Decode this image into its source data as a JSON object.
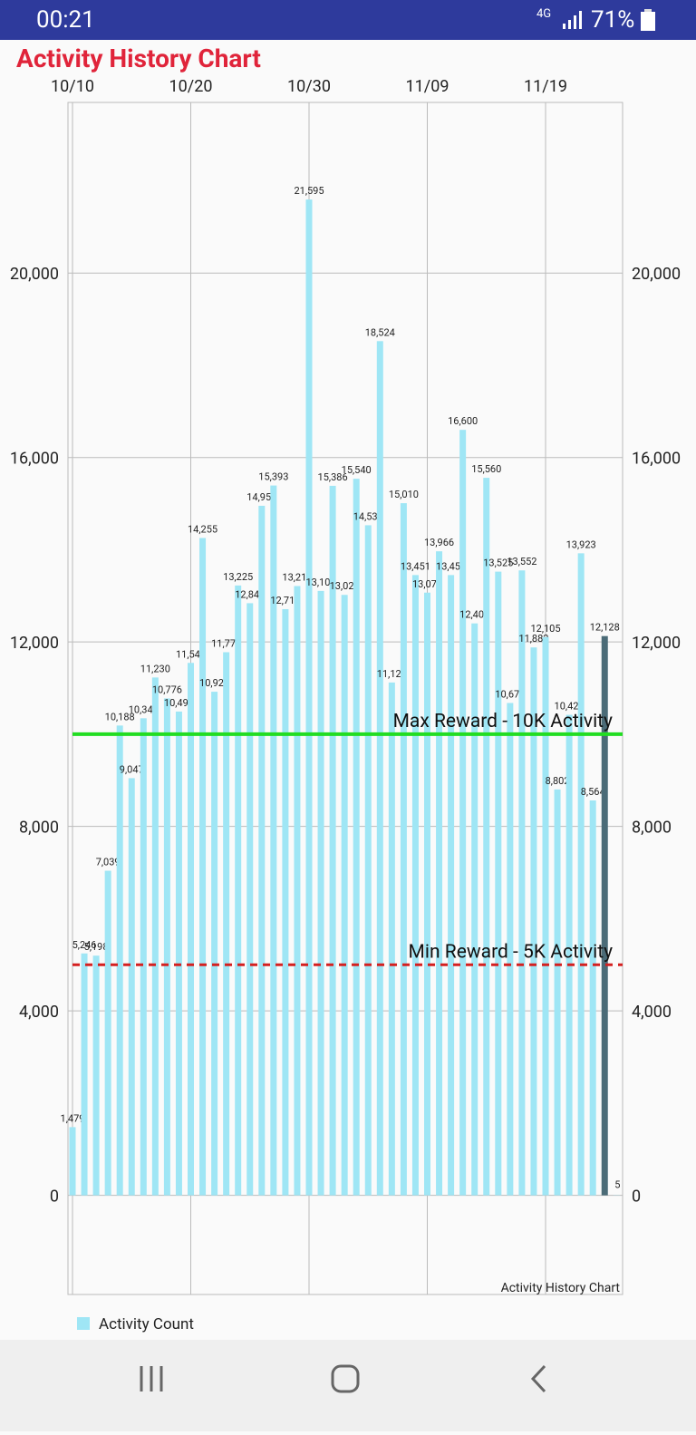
{
  "status_bar": {
    "time": "00:21",
    "network": "4G",
    "battery": "71%"
  },
  "app_title": "Activity History Chart",
  "chart_data": {
    "type": "bar",
    "description": "Activity History Chart",
    "categories": [
      "10/10",
      null,
      null,
      null,
      null,
      null,
      null,
      null,
      null,
      null,
      "10/20",
      null,
      null,
      null,
      null,
      null,
      null,
      null,
      null,
      null,
      "10/30",
      null,
      null,
      null,
      null,
      null,
      null,
      null,
      null,
      null,
      "11/09",
      null,
      null,
      null,
      null,
      null,
      null,
      null,
      null,
      null,
      "11/19",
      null,
      null,
      null,
      null,
      null,
      null
    ],
    "series": [
      {
        "name": "Activity Count",
        "color": "#9fe6f5",
        "values": [
          1479,
          5246,
          5198,
          7039,
          10188,
          9047,
          10346,
          11230,
          10776,
          10491,
          11546,
          14255,
          10921,
          11778,
          13225,
          12841,
          14953,
          15393,
          12712,
          13213,
          21595,
          13107,
          15386,
          13021,
          15540,
          14531,
          18524,
          11121,
          15010,
          13451,
          13070,
          13966,
          13451,
          16600,
          12403,
          15560,
          13525,
          10677,
          13552,
          11882,
          12105,
          8802,
          10420,
          13923,
          8564,
          12128,
          5
        ],
        "value_labels": [
          "1,479",
          "5,246",
          "5,198",
          "7,039",
          "10,188",
          "9,047",
          "10,346",
          "11,230",
          "10,776",
          "10,491",
          "11,546",
          "14,255",
          "10,921",
          "11,778",
          "13,225",
          "12,841",
          "14,953",
          "15,393",
          "12,712",
          "13,213",
          "21,595",
          "13,107",
          "15,386",
          "13,021",
          "15,540",
          "14,531",
          "18,524",
          "11,121",
          "15,010",
          "13,451",
          "13,070",
          "13,966",
          "13,451",
          "16,600",
          "12,403",
          "15,560",
          "13,525",
          "10,677",
          "13,552",
          "11,882",
          "12,105",
          "8,802",
          "10,420",
          "13,923",
          "8,564",
          "12,128",
          "5"
        ],
        "bar_colors": [
          "#9fe6f5",
          "#9fe6f5",
          "#9fe6f5",
          "#9fe6f5",
          "#9fe6f5",
          "#9fe6f5",
          "#9fe6f5",
          "#9fe6f5",
          "#9fe6f5",
          "#9fe6f5",
          "#9fe6f5",
          "#9fe6f5",
          "#9fe6f5",
          "#9fe6f5",
          "#9fe6f5",
          "#9fe6f5",
          "#9fe6f5",
          "#9fe6f5",
          "#9fe6f5",
          "#9fe6f5",
          "#9fe6f5",
          "#9fe6f5",
          "#9fe6f5",
          "#9fe6f5",
          "#9fe6f5",
          "#9fe6f5",
          "#9fe6f5",
          "#9fe6f5",
          "#9fe6f5",
          "#9fe6f5",
          "#9fe6f5",
          "#9fe6f5",
          "#9fe6f5",
          "#9fe6f5",
          "#9fe6f5",
          "#9fe6f5",
          "#9fe6f5",
          "#9fe6f5",
          "#9fe6f5",
          "#9fe6f5",
          "#9fe6f5",
          "#9fe6f5",
          "#9fe6f5",
          "#9fe6f5",
          "#9fe6f5",
          "#4b6b77",
          "#9fe6f5"
        ]
      }
    ],
    "ylim": [
      -2150,
      23700
    ],
    "yticks": [
      0,
      {
        "value": 4000,
        "label": "4,000"
      },
      {
        "value": 8000,
        "label": "8,000"
      },
      {
        "value": 12000,
        "label": "12,000"
      },
      {
        "value": 16000,
        "label": "16,000"
      },
      {
        "value": 20000,
        "label": "20,000"
      }
    ],
    "grid": true,
    "limit_lines": [
      {
        "value": 10000,
        "label": "Max Reward - 10K Activity",
        "color": "#22dd22",
        "dashed": false
      },
      {
        "value": 5000,
        "label": "Min Reward - 5K Activity",
        "color": "#d42020",
        "dashed": true
      }
    ],
    "legend": "bottom-left"
  }
}
